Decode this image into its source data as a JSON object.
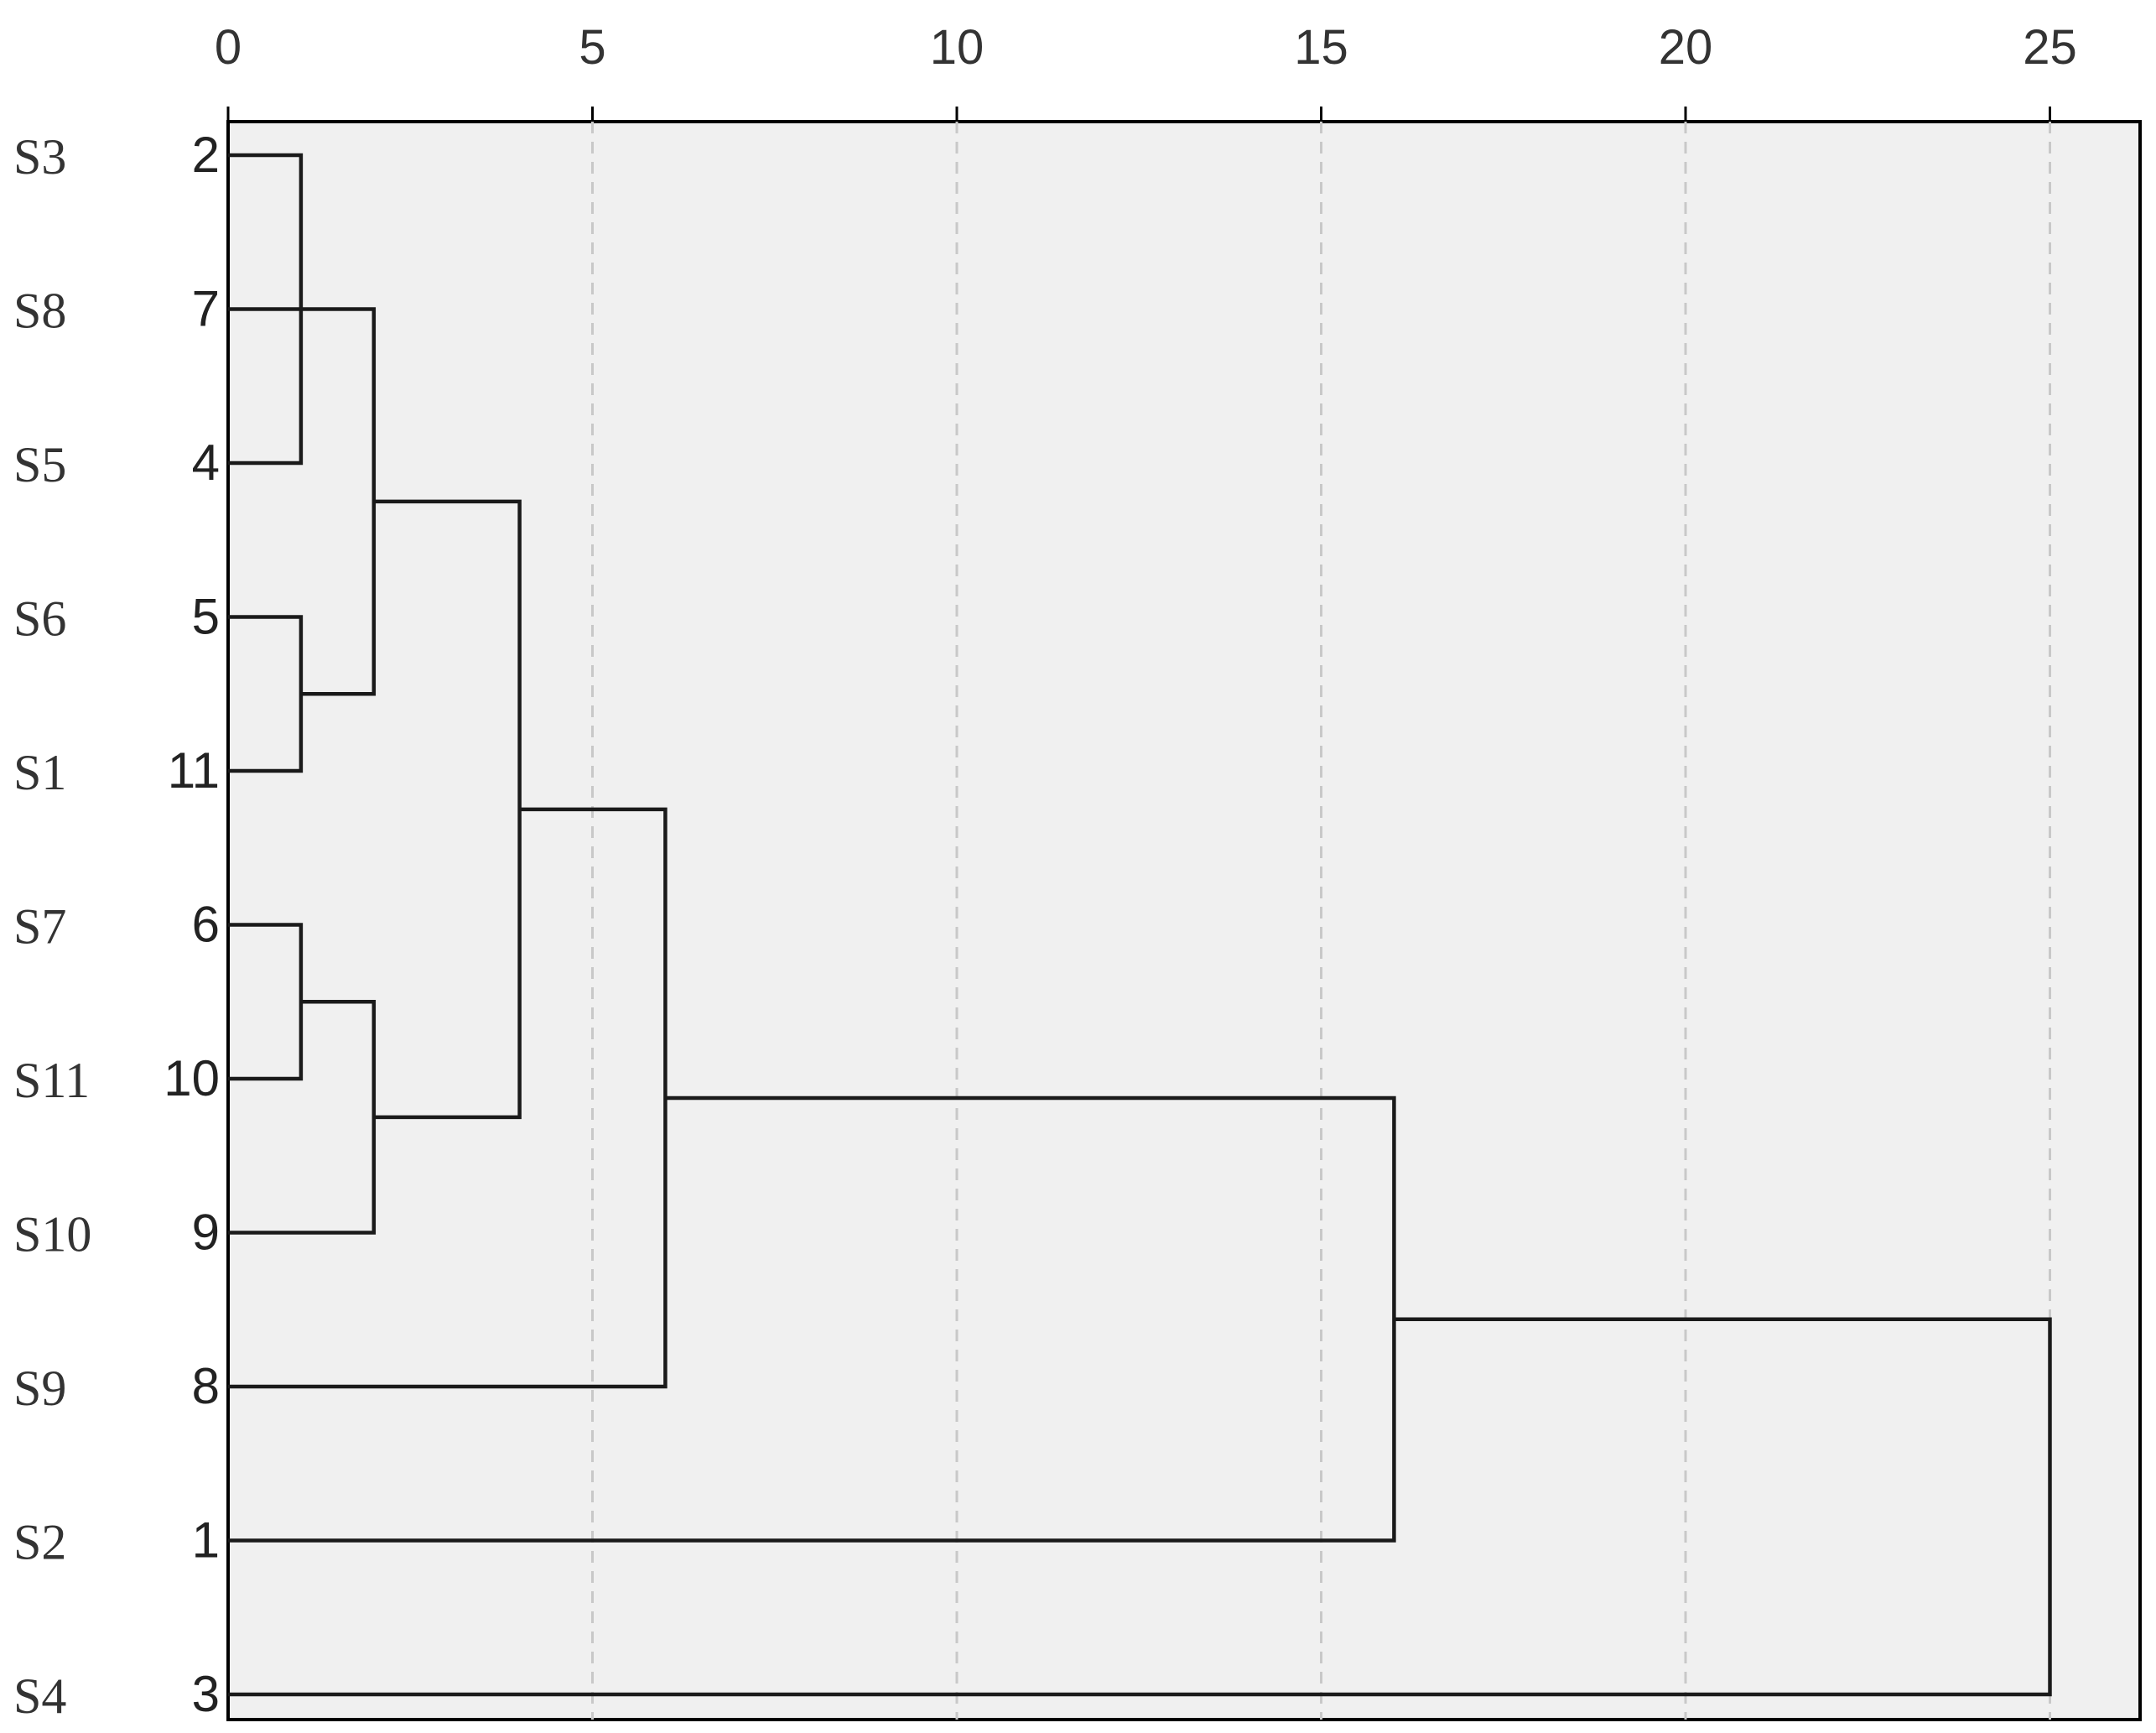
{
  "colors": {
    "plot_background": "#f0f0f0",
    "frame": "#000000",
    "link": "#1a1a1a",
    "gridline": "#c8c8c8",
    "text": "#333333"
  },
  "chart_data": {
    "type": "dendrogram",
    "orientation": "horizontal",
    "title": "",
    "xlabel": "",
    "ylabel": "",
    "xlim": [
      0,
      26
    ],
    "x_ticks": [
      0,
      5,
      10,
      15,
      20,
      25
    ],
    "x_tick_labels": [
      "0",
      "5",
      "10",
      "15",
      "20",
      "25"
    ],
    "x_axis_position": "top",
    "grid": "vertical dashed at major ticks",
    "leaves": [
      {
        "label": "S3",
        "case": "2"
      },
      {
        "label": "S8",
        "case": "7"
      },
      {
        "label": "S5",
        "case": "4"
      },
      {
        "label": "S6",
        "case": "5"
      },
      {
        "label": "S1",
        "case": "11"
      },
      {
        "label": "S7",
        "case": "6"
      },
      {
        "label": "S11",
        "case": "10"
      },
      {
        "label": "S10",
        "case": "9"
      },
      {
        "label": "S9",
        "case": "8"
      },
      {
        "label": "S2",
        "case": "1"
      },
      {
        "label": "S4",
        "case": "3"
      }
    ],
    "merges": [
      {
        "id": "m1",
        "left": 0,
        "right": 2,
        "height": 1
      },
      {
        "id": "m2",
        "left": 3,
        "right": 4,
        "height": 1
      },
      {
        "id": "m3",
        "left": 5,
        "right": 6,
        "height": 1
      },
      {
        "id": "m4",
        "left": 1,
        "right": "m2",
        "height": 2
      },
      {
        "id": "m5",
        "left": "m3",
        "right": 7,
        "height": 2
      },
      {
        "id": "m6",
        "left": "m4",
        "right": "m5",
        "height": 4
      },
      {
        "id": "m7",
        "left": "m6",
        "right": 8,
        "height": 6
      },
      {
        "id": "m8",
        "left": "m7",
        "right": 9,
        "height": 16
      },
      {
        "id": "m9",
        "left": "m8",
        "right": 10,
        "height": 25
      }
    ]
  }
}
